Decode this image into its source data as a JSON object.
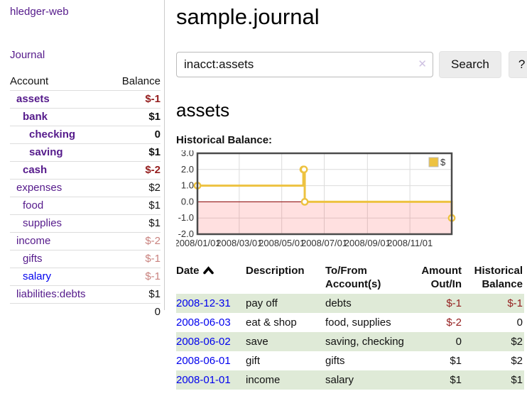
{
  "colors": {
    "link_purple": "#551a8b",
    "link_blue": "#0000ee",
    "negative_strong": "#941d1d",
    "negative_soft": "#c9827e",
    "row_stripe_green": "#dfead7",
    "chart_line_gold": "#edc240"
  },
  "app": {
    "title": "hledger-web"
  },
  "sidebar": {
    "journal_link": "Journal",
    "accounts": {
      "header_account": "Account",
      "header_balance": "Balance",
      "rows": [
        {
          "name": "assets",
          "balance": "$-1",
          "indent": 1,
          "bold": true
        },
        {
          "name": "bank",
          "balance": "$1",
          "indent": 2,
          "bold": true
        },
        {
          "name": "checking",
          "balance": "0",
          "indent": 3,
          "bold": true
        },
        {
          "name": "saving",
          "balance": "$1",
          "indent": 3,
          "bold": true
        },
        {
          "name": "cash",
          "balance": "$-2",
          "indent": 2,
          "bold": true
        },
        {
          "name": "expenses",
          "balance": "$2",
          "indent": 1,
          "bold": false
        },
        {
          "name": "food",
          "balance": "$1",
          "indent": 2,
          "bold": false
        },
        {
          "name": "supplies",
          "balance": "$1",
          "indent": 2,
          "bold": false
        },
        {
          "name": "income",
          "balance": "$-2",
          "indent": 1,
          "bold": false
        },
        {
          "name": "gifts",
          "balance": "$-1",
          "indent": 2,
          "bold": false
        },
        {
          "name": "salary",
          "balance": "$-1",
          "indent": 2,
          "bold": false,
          "blue": true
        },
        {
          "name": "liabilities:debts",
          "balance": "$1",
          "indent": 1,
          "bold": false
        }
      ],
      "total": "0"
    }
  },
  "main": {
    "title": "sample.journal",
    "search": {
      "value": "inacct:assets",
      "clear_icon": "✕",
      "button_label": "Search",
      "help_label": "?"
    },
    "account_heading": "assets",
    "chart_label": "Historical Balance:",
    "register": {
      "headers": [
        "Date",
        "Description",
        "To/From Account(s)",
        "Amount Out/In",
        "Historical Balance"
      ],
      "rows": [
        {
          "date": "2008-12-31",
          "description": "pay off",
          "accounts": "debts",
          "amount": "$-1",
          "balance": "$-1"
        },
        {
          "date": "2008-06-03",
          "description": "eat & shop",
          "accounts": "food, supplies",
          "amount": "$-2",
          "balance": "0"
        },
        {
          "date": "2008-06-02",
          "description": "save",
          "accounts": "saving, checking",
          "amount": "0",
          "balance": "$2"
        },
        {
          "date": "2008-06-01",
          "description": "gift",
          "accounts": "gifts",
          "amount": "$1",
          "balance": "$2"
        },
        {
          "date": "2008-01-01",
          "description": "income",
          "accounts": "salary",
          "amount": "$1",
          "balance": "$1"
        }
      ]
    }
  },
  "chart_data": {
    "type": "line",
    "step": true,
    "title": "Historical Balance:",
    "legend_position": "top-right",
    "grid": true,
    "xlim": [
      "2008-01-01",
      "2008-12-31"
    ],
    "ylim": [
      -2,
      3
    ],
    "yticks": [
      3,
      2,
      1,
      0,
      -1,
      -2
    ],
    "xticks": [
      {
        "date": "2008-01-01",
        "label": "2008/01/01"
      },
      {
        "date": "2008-03-01",
        "label": "2008/03/01"
      },
      {
        "date": "2008-05-01",
        "label": "2008/05/01"
      },
      {
        "date": "2008-07-01",
        "label": "2008/07/01"
      },
      {
        "date": "2008-09-01",
        "label": "2008/09/01"
      },
      {
        "date": "2008-11-01",
        "label": "2008/11/01"
      }
    ],
    "series": [
      {
        "name": "$",
        "color": "#edc240",
        "points": [
          [
            "2008-01-01",
            1
          ],
          [
            "2008-06-01",
            2
          ],
          [
            "2008-06-02",
            2
          ],
          [
            "2008-06-03",
            0
          ],
          [
            "2008-12-31",
            -1
          ]
        ]
      }
    ],
    "colors": {
      "grid": "#dcdcdc",
      "border": "#4a4a4a",
      "zero_line": "#8b0000",
      "negative_fill": "rgba(255,0,0,0.12)",
      "tick_text": "#333333"
    }
  }
}
